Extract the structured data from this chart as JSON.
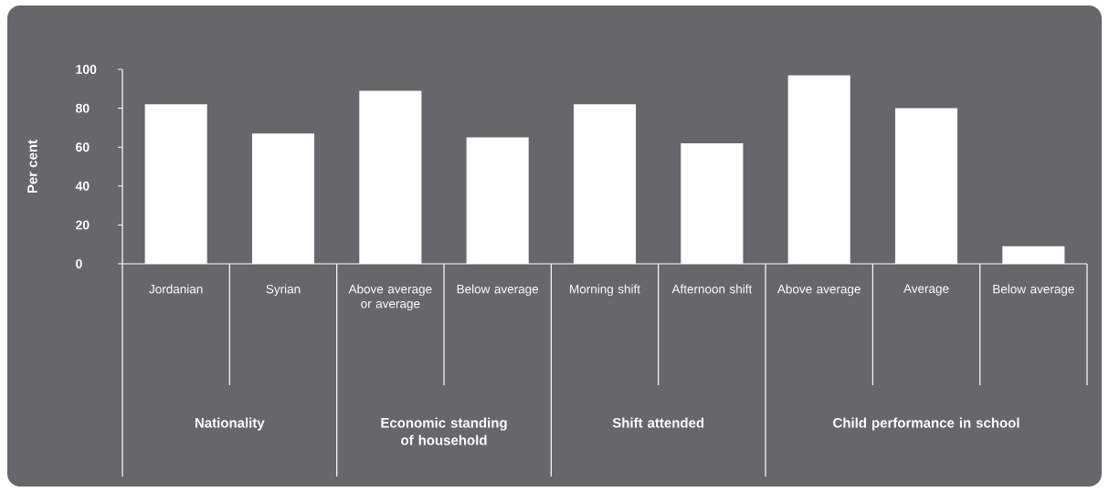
{
  "chart_data": {
    "type": "bar",
    "ylabel": "Per cent",
    "categories": [
      "Jordanian",
      "Syrian",
      "Above average or average",
      "Below average",
      "Morning shift",
      "Afternoon shift",
      "Above average",
      "Average",
      "Below average"
    ],
    "values": [
      82,
      67,
      89,
      65,
      82,
      62,
      97,
      80,
      9
    ],
    "color": "#ffffff",
    "ylim": [
      0,
      100
    ],
    "yticks": [
      0,
      20,
      40,
      60,
      80,
      100
    ],
    "annotations": [
      "Nationality",
      "Economic standing of household",
      "Shift attended",
      "Child performance in school"
    ]
  }
}
